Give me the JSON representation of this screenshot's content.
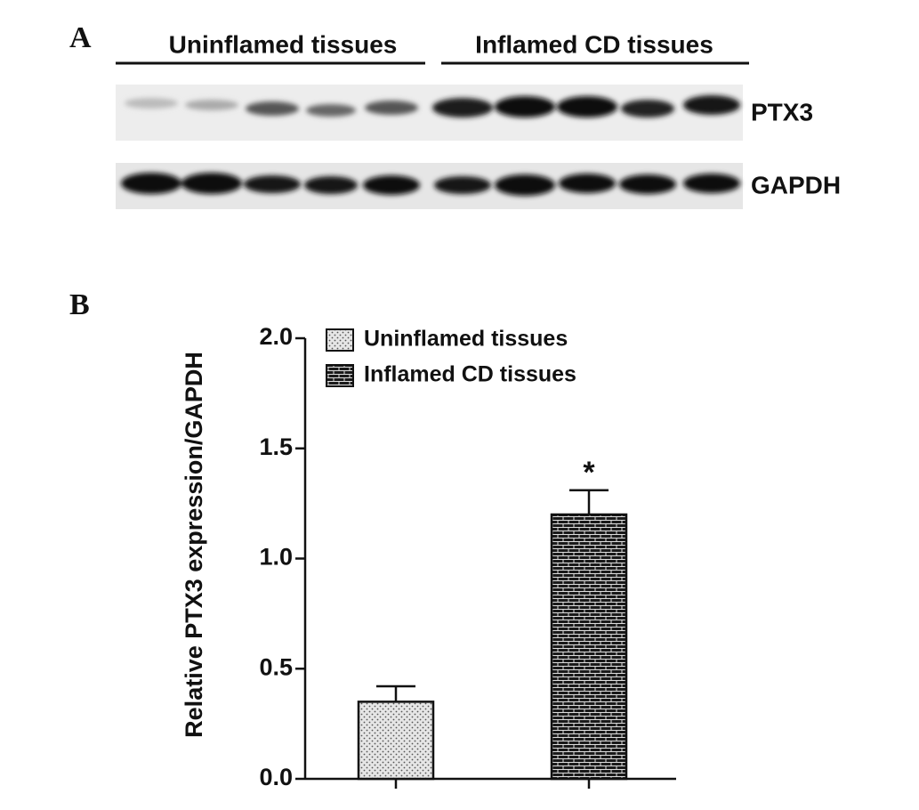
{
  "panels": {
    "a": "A",
    "b": "B"
  },
  "blot": {
    "groups": [
      "Uninflamed tissues",
      "Inflamed CD tissues"
    ],
    "rows": [
      "PTX3",
      "GAPDH"
    ]
  },
  "chart_data": {
    "type": "bar",
    "ylabel": "Relative PTX3 expression/GAPDH",
    "categories": [
      null,
      null
    ],
    "series": [
      {
        "name": "Uninflamed tissues",
        "color": "#d9d9d9",
        "pattern": "dots",
        "values": [
          0.35,
          null
        ],
        "errors": [
          0.07,
          null
        ]
      },
      {
        "name": "Inflamed CD tissues",
        "color": "#1a1a1a",
        "pattern": "bricks",
        "values": [
          null,
          1.2
        ],
        "errors": [
          null,
          0.11
        ]
      }
    ],
    "annotations": [
      {
        "text": "*",
        "category": 1
      }
    ],
    "ylim": [
      0,
      2
    ],
    "yticks": [
      {
        "value": 0,
        "label": "0.0"
      },
      0.5,
      {
        "value": 1,
        "label": "1.0"
      },
      1.5,
      {
        "value": 2,
        "label": "2.0"
      }
    ],
    "legend": "top-left"
  }
}
